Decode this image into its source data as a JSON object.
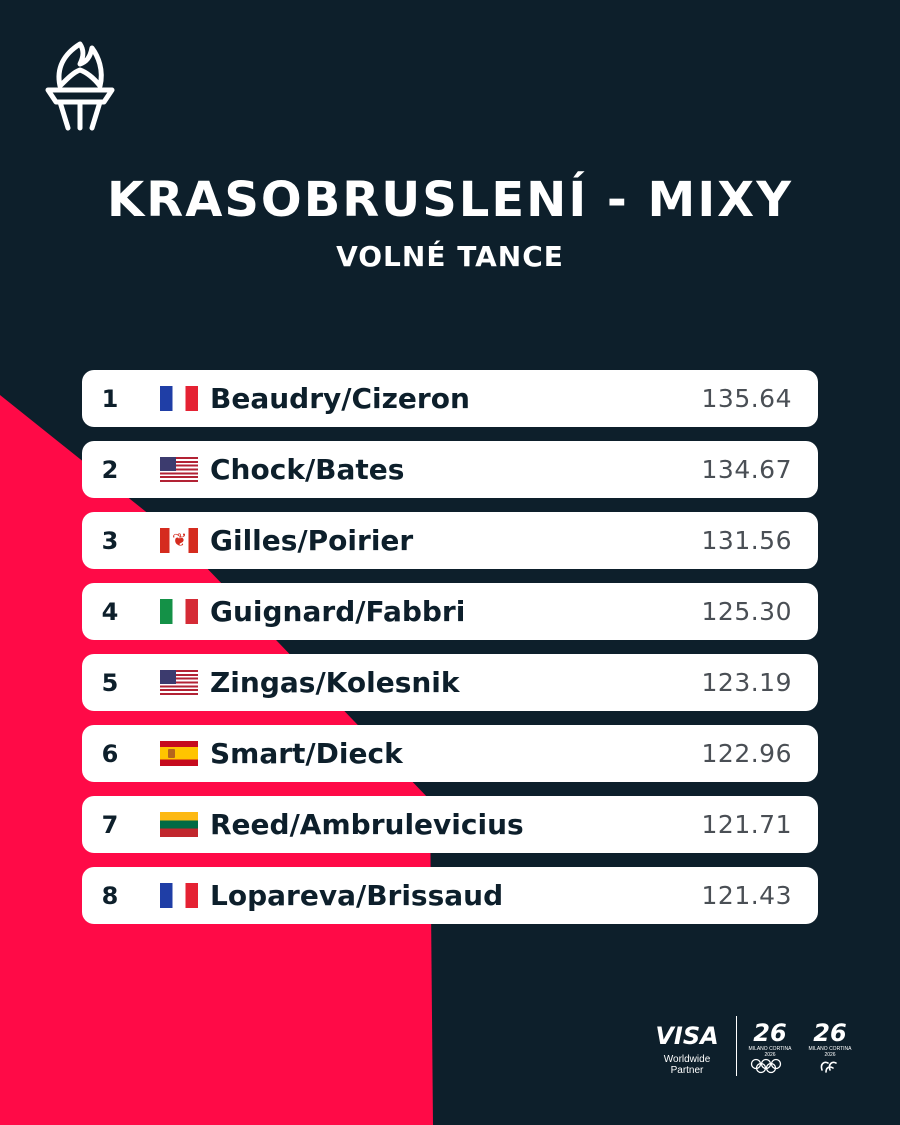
{
  "header": {
    "title": "KRASOBRUSLENÍ - MIXY",
    "subtitle": "VOLNÉ TANCE"
  },
  "results": [
    {
      "rank": "1",
      "flag": "france",
      "name": "Beaudry/Cizeron",
      "score": "135.64"
    },
    {
      "rank": "2",
      "flag": "usa",
      "name": "Chock/Bates",
      "score": "134.67"
    },
    {
      "rank": "3",
      "flag": "canada",
      "name": "Gilles/Poirier",
      "score": "131.56"
    },
    {
      "rank": "4",
      "flag": "italy",
      "name": "Guignard/Fabbri",
      "score": "125.30"
    },
    {
      "rank": "5",
      "flag": "usa",
      "name": "Zingas/Kolesnik",
      "score": "123.19"
    },
    {
      "rank": "6",
      "flag": "spain",
      "name": "Smart/Dieck",
      "score": "122.96"
    },
    {
      "rank": "7",
      "flag": "lithuania",
      "name": "Reed/Ambrulevicius",
      "score": "121.71"
    },
    {
      "rank": "8",
      "flag": "france",
      "name": "Lopareva/Brissaud",
      "score": "121.43"
    }
  ],
  "sponsor": {
    "brand": "VISA",
    "tagline": "Worldwide Partner",
    "olympic_number": "26",
    "olympic_caption": "MILANO CORTINA 2026",
    "paralympic_number": "26",
    "paralympic_caption": "MILANO CORTINA 2026"
  },
  "colors": {
    "background": "#0d1f2b",
    "accent": "#ff0a47",
    "card": "#ffffff",
    "text_dark": "#0d1f2b",
    "score_text": "#4a4f55"
  },
  "icons": {
    "logo": "torch-icon",
    "olympic": "olympic-rings-icon",
    "paralympic": "agitos-icon"
  }
}
